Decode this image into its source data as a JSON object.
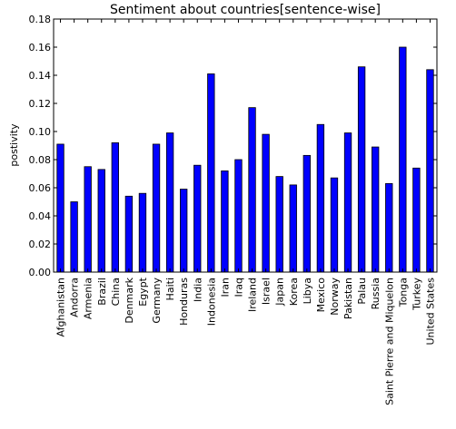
{
  "chart_data": {
    "type": "bar",
    "title": "Sentiment about countries[sentence-wise]",
    "xlabel": "",
    "ylabel": "postivity",
    "ylim": [
      0,
      0.18
    ],
    "yticks": [
      "0.00",
      "0.02",
      "0.04",
      "0.06",
      "0.08",
      "0.10",
      "0.12",
      "0.14",
      "0.16",
      "0.18"
    ],
    "categories": [
      "Afghanistan",
      "Andorra",
      "Armenia",
      "Brazil",
      "China",
      "Denmark",
      "Egypt",
      "Germany",
      "Haiti",
      "Honduras",
      "India",
      "Indonesia",
      "Iran",
      "Iraq",
      "Ireland",
      "Israel",
      "Japan",
      "Korea",
      "Libya",
      "Mexico",
      "Norway",
      "Pakistan",
      "Palau",
      "Russia",
      "Saint Pierre and Miquelon",
      "Tonga",
      "Turkey",
      "United States"
    ],
    "values": [
      0.091,
      0.05,
      0.075,
      0.073,
      0.092,
      0.054,
      0.056,
      0.091,
      0.099,
      0.059,
      0.076,
      0.141,
      0.072,
      0.08,
      0.117,
      0.098,
      0.068,
      0.062,
      0.083,
      0.105,
      0.067,
      0.099,
      0.146,
      0.089,
      0.063,
      0.16,
      0.074,
      0.144
    ],
    "bar_color": "#0000ff",
    "grid": false,
    "legend": "none"
  }
}
